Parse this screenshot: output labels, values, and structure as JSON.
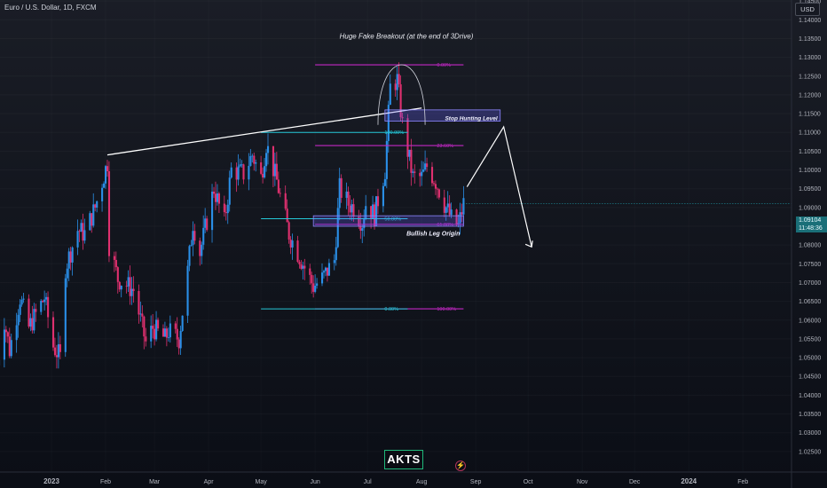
{
  "header": {
    "symbol_line": "Euro / U.S. Dollar, 1D, FXCM"
  },
  "currency_badge": "USD",
  "last_price": {
    "value": "1.09104",
    "countdown": "11:48:36"
  },
  "logo_text": "AKTS",
  "colors": {
    "up": "#2a8fe8",
    "down": "#e0306f",
    "fib_magenta": "#c227c4",
    "fib_cyan": "#25c8d8",
    "trend": "#ffffff",
    "box": "#6c63ff"
  },
  "chart_data": {
    "type": "candlestick",
    "symbol": "EURUSD",
    "timeframe": "1D",
    "ylim": [
      1.02,
      1.15
    ],
    "y_ticks": [
      "1.14500",
      "1.14000",
      "1.13500",
      "1.13000",
      "1.12500",
      "1.12000",
      "1.11500",
      "1.11000",
      "1.10500",
      "1.10000",
      "1.09500",
      "1.09000",
      "1.08500",
      "1.08000",
      "1.07500",
      "1.07000",
      "1.06500",
      "1.06000",
      "1.05500",
      "1.05000",
      "1.04500",
      "1.04000",
      "1.03500",
      "1.03000",
      "1.02500"
    ],
    "x_ticks": [
      "2023",
      "Feb",
      "Mar",
      "Apr",
      "May",
      "Jun",
      "Jul",
      "Aug",
      "Sep",
      "Oct",
      "Nov",
      "Dec",
      "2024",
      "Feb"
    ],
    "x_tick_dates": [
      "2023-01-01",
      "2023-02-01",
      "2023-03-01",
      "2023-04-01",
      "2023-05-01",
      "2023-06-01",
      "2023-07-01",
      "2023-08-01",
      "2023-09-01",
      "2023-10-01",
      "2023-11-01",
      "2023-12-01",
      "2024-01-01",
      "2024-02-01"
    ],
    "price_path": [
      [
        "2022-12-01",
        1.048
      ],
      [
        "2022-12-05",
        1.06
      ],
      [
        "2022-12-08",
        1.052
      ],
      [
        "2022-12-14",
        1.066
      ],
      [
        "2022-12-19",
        1.058
      ],
      [
        "2022-12-28",
        1.066
      ],
      [
        "2023-01-02",
        1.053
      ],
      [
        "2023-01-06",
        1.05
      ],
      [
        "2023-01-09",
        1.074
      ],
      [
        "2023-01-16",
        1.084
      ],
      [
        "2023-01-20",
        1.083
      ],
      [
        "2023-01-26",
        1.09
      ],
      [
        "2023-02-02",
        1.102
      ],
      [
        "2023-02-03",
        1.08
      ],
      [
        "2023-02-08",
        1.071
      ],
      [
        "2023-02-17",
        1.068
      ],
      [
        "2023-02-24",
        1.054
      ],
      [
        "2023-02-28",
        1.058
      ],
      [
        "2023-03-07",
        1.055
      ],
      [
        "2023-03-09",
        1.057
      ],
      [
        "2023-03-15",
        1.055
      ],
      [
        "2023-03-20",
        1.073
      ],
      [
        "2023-03-23",
        1.086
      ],
      [
        "2023-03-27",
        1.078
      ],
      [
        "2023-04-04",
        1.095
      ],
      [
        "2023-04-10",
        1.086
      ],
      [
        "2023-04-14",
        1.1
      ],
      [
        "2023-04-21",
        1.099
      ],
      [
        "2023-04-26",
        1.104
      ],
      [
        "2023-05-01",
        1.098
      ],
      [
        "2023-05-04",
        1.107
      ],
      [
        "2023-05-10",
        1.097
      ],
      [
        "2023-05-17",
        1.083
      ],
      [
        "2023-05-24",
        1.076
      ],
      [
        "2023-05-31",
        1.069
      ],
      [
        "2023-06-05",
        1.071
      ],
      [
        "2023-06-12",
        1.076
      ],
      [
        "2023-06-15",
        1.095
      ],
      [
        "2023-06-20",
        1.091
      ],
      [
        "2023-06-23",
        1.09
      ],
      [
        "2023-06-28",
        1.086
      ],
      [
        "2023-06-30",
        1.091
      ],
      [
        "2023-07-05",
        1.088
      ],
      [
        "2023-07-11",
        1.1
      ],
      [
        "2023-07-14",
        1.122
      ],
      [
        "2023-07-18",
        1.124
      ],
      [
        "2023-07-21",
        1.112
      ],
      [
        "2023-07-27",
        1.098
      ],
      [
        "2023-08-01",
        1.098
      ],
      [
        "2023-08-04",
        1.101
      ],
      [
        "2023-08-09",
        1.097
      ],
      [
        "2023-08-14",
        1.091
      ],
      [
        "2023-08-18",
        1.087
      ],
      [
        "2023-08-22",
        1.085
      ],
      [
        "2023-08-25",
        1.091
      ]
    ],
    "last_price": 1.09104,
    "annotations": [
      {
        "text": "Huge Fake Breakout (at the end of 3Drive)"
      },
      {
        "text": "Stop Hunting Level"
      },
      {
        "text": "Bullish Leg Origin"
      }
    ],
    "fib_levels_magenta": [
      {
        "label": "0.00%",
        "price": 1.128
      },
      {
        "label": "23.60%",
        "price": 1.1065
      },
      {
        "label": "61.80%",
        "price": 1.0855
      },
      {
        "label": "100.00%",
        "price": 1.063
      }
    ],
    "fib_levels_cyan": [
      {
        "label": "100.00%",
        "price": 1.11
      },
      {
        "label": "50.00%",
        "price": 1.087
      },
      {
        "label": "0.00%",
        "price": 1.063
      }
    ],
    "trendline": {
      "from": [
        "2023-02-02",
        1.104
      ],
      "to": [
        "2023-08-01",
        1.1165
      ]
    },
    "stop_hunting_box": {
      "from": "2023-07-11",
      "to": "2023-09-15",
      "top": 1.116,
      "bottom": 1.113
    },
    "origin_box": {
      "from": "2023-05-31",
      "to": "2023-08-25",
      "top": 1.0878,
      "bottom": 1.085
    },
    "projection": [
      [
        "2023-08-27",
        1.0955
      ],
      [
        "2023-09-17",
        1.1115
      ],
      [
        "2023-10-03",
        1.0795
      ]
    ]
  }
}
